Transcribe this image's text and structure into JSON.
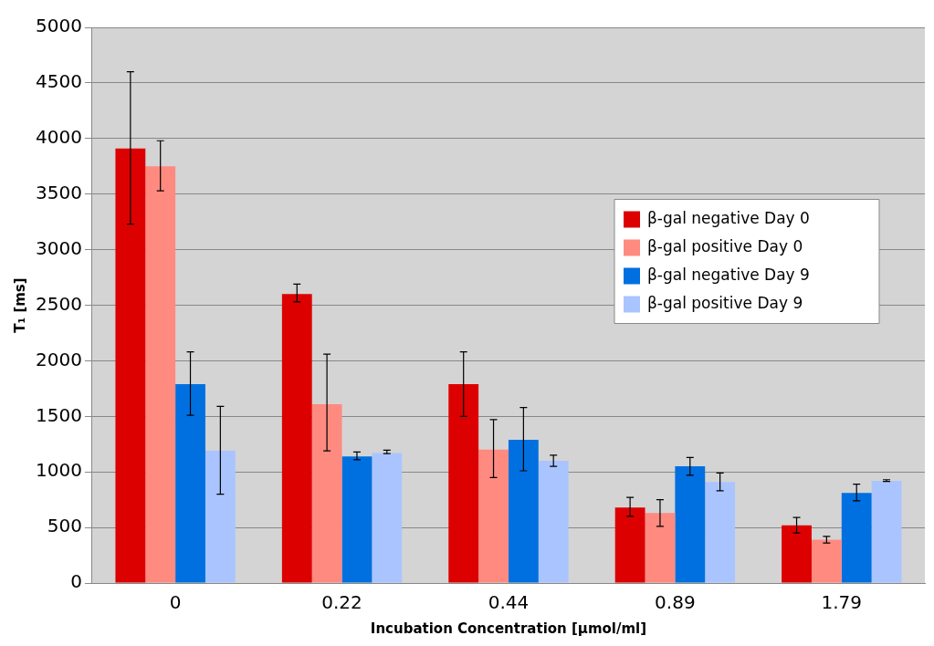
{
  "chart_data": {
    "type": "bar",
    "xlabel": "Incubation Concentration [µmol/ml]",
    "ylabel": "T₁ [ms]",
    "categories": [
      "0",
      "0.22",
      "0.44",
      "0.89",
      "1.79"
    ],
    "series": [
      {
        "name": "β-gal negative Day 0",
        "color": "#dd0000",
        "values": [
          3910,
          2600,
          1790,
          680,
          520
        ],
        "errors": [
          [
            3230,
            4600
          ],
          [
            2530,
            2690
          ],
          [
            1500,
            2080
          ],
          [
            600,
            770
          ],
          [
            450,
            590
          ]
        ]
      },
      {
        "name": "β-gal positive Day 0",
        "color": "#ff8a80",
        "values": [
          3750,
          1610,
          1200,
          630,
          390
        ],
        "errors": [
          [
            3530,
            3980
          ],
          [
            1190,
            2060
          ],
          [
            950,
            1470
          ],
          [
            510,
            750
          ],
          [
            360,
            420
          ]
        ]
      },
      {
        "name": "β-gal negative Day 9",
        "color": "#0070e0",
        "values": [
          1790,
          1140,
          1290,
          1050,
          810
        ],
        "errors": [
          [
            1510,
            2080
          ],
          [
            1110,
            1180
          ],
          [
            1010,
            1580
          ],
          [
            970,
            1130
          ],
          [
            740,
            890
          ]
        ]
      },
      {
        "name": "β-gal positive Day 9",
        "color": "#aac4ff",
        "values": [
          1190,
          1170,
          1100,
          910,
          920
        ],
        "errors": [
          [
            800,
            1590
          ],
          [
            1165,
            1195
          ],
          [
            1050,
            1150
          ],
          [
            830,
            990
          ],
          [
            915,
            930
          ]
        ]
      }
    ],
    "ylim": [
      0,
      5000
    ],
    "yticks": [
      0,
      500,
      1000,
      1500,
      2000,
      2500,
      3000,
      3500,
      4000,
      4500,
      5000
    ],
    "grid": "y",
    "legend": "right"
  }
}
